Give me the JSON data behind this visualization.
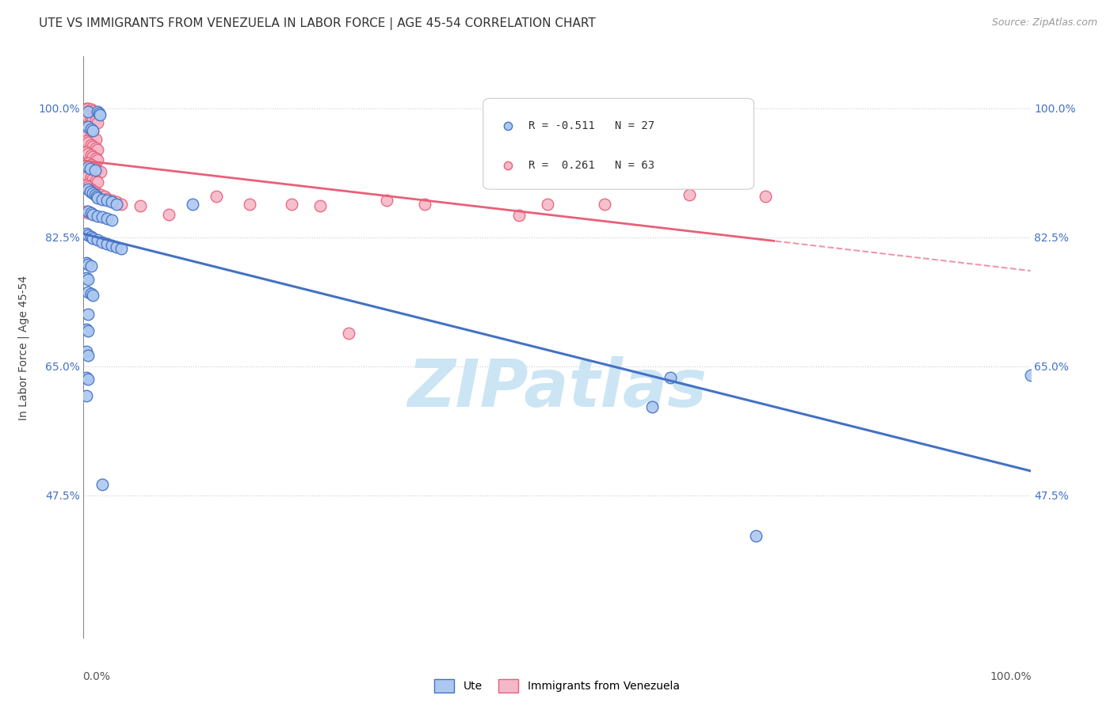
{
  "title": "UTE VS IMMIGRANTS FROM VENEZUELA IN LABOR FORCE | AGE 45-54 CORRELATION CHART",
  "source": "Source: ZipAtlas.com",
  "ylabel": "In Labor Force | Age 45-54",
  "xlim": [
    0.0,
    1.0
  ],
  "ylim": [
    0.28,
    1.07
  ],
  "yticks": [
    0.475,
    0.65,
    0.825,
    1.0
  ],
  "ytick_labels": [
    "47.5%",
    "65.0%",
    "82.5%",
    "100.0%"
  ],
  "ute_line_color": "#4472c4",
  "ute_scatter_face": "#adc8f0",
  "ute_scatter_edge": "#4472c4",
  "venezuela_line_color": "#e8607a",
  "venezuela_scatter_face": "#f5b8c8",
  "venezuela_scatter_edge": "#e8607a",
  "legend_ute_label": "Ute",
  "legend_venezuela_label": "Immigrants from Venezuela",
  "background_color": "#ffffff",
  "grid_color": "#cccccc",
  "title_fontsize": 11,
  "axis_label_fontsize": 10,
  "tick_fontsize": 10,
  "source_fontsize": 9,
  "watermark_color": "#cce5f5",
  "watermark_fontsize": 60,
  "ute_points": [
    [
      0.005,
      0.995
    ],
    [
      0.015,
      0.995
    ],
    [
      0.016,
      0.993
    ],
    [
      0.017,
      0.991
    ],
    [
      0.005,
      0.975
    ],
    [
      0.008,
      0.972
    ],
    [
      0.01,
      0.97
    ],
    [
      0.005,
      0.92
    ],
    [
      0.007,
      0.918
    ],
    [
      0.012,
      0.916
    ],
    [
      0.005,
      0.89
    ],
    [
      0.007,
      0.887
    ],
    [
      0.01,
      0.885
    ],
    [
      0.012,
      0.882
    ],
    [
      0.014,
      0.88
    ],
    [
      0.015,
      0.878
    ],
    [
      0.02,
      0.876
    ],
    [
      0.025,
      0.875
    ],
    [
      0.03,
      0.873
    ],
    [
      0.035,
      0.87
    ],
    [
      0.005,
      0.86
    ],
    [
      0.008,
      0.858
    ],
    [
      0.01,
      0.856
    ],
    [
      0.015,
      0.854
    ],
    [
      0.02,
      0.852
    ],
    [
      0.025,
      0.85
    ],
    [
      0.03,
      0.848
    ],
    [
      0.003,
      0.83
    ],
    [
      0.005,
      0.828
    ],
    [
      0.008,
      0.826
    ],
    [
      0.01,
      0.823
    ],
    [
      0.015,
      0.821
    ],
    [
      0.02,
      0.818
    ],
    [
      0.025,
      0.816
    ],
    [
      0.03,
      0.814
    ],
    [
      0.035,
      0.812
    ],
    [
      0.04,
      0.81
    ],
    [
      0.003,
      0.79
    ],
    [
      0.005,
      0.788
    ],
    [
      0.008,
      0.786
    ],
    [
      0.003,
      0.77
    ],
    [
      0.005,
      0.768
    ],
    [
      0.005,
      0.75
    ],
    [
      0.008,
      0.748
    ],
    [
      0.01,
      0.746
    ],
    [
      0.005,
      0.72
    ],
    [
      0.003,
      0.7
    ],
    [
      0.005,
      0.698
    ],
    [
      0.003,
      0.67
    ],
    [
      0.005,
      0.665
    ],
    [
      0.003,
      0.635
    ],
    [
      0.005,
      0.632
    ],
    [
      0.003,
      0.61
    ],
    [
      0.02,
      0.49
    ],
    [
      0.115,
      0.87
    ],
    [
      0.62,
      0.635
    ],
    [
      1.0,
      0.638
    ],
    [
      0.6,
      0.595
    ],
    [
      0.71,
      0.42
    ]
  ],
  "venezuela_points": [
    [
      0.003,
      1.0
    ],
    [
      0.005,
      1.0
    ],
    [
      0.008,
      0.998
    ],
    [
      0.01,
      0.996
    ],
    [
      0.003,
      0.99
    ],
    [
      0.005,
      0.988
    ],
    [
      0.008,
      0.986
    ],
    [
      0.01,
      0.985
    ],
    [
      0.013,
      0.983
    ],
    [
      0.015,
      0.98
    ],
    [
      0.003,
      0.975
    ],
    [
      0.005,
      0.973
    ],
    [
      0.008,
      0.97
    ],
    [
      0.01,
      0.968
    ],
    [
      0.005,
      0.965
    ],
    [
      0.008,
      0.963
    ],
    [
      0.01,
      0.96
    ],
    [
      0.013,
      0.958
    ],
    [
      0.003,
      0.955
    ],
    [
      0.005,
      0.953
    ],
    [
      0.008,
      0.95
    ],
    [
      0.01,
      0.948
    ],
    [
      0.013,
      0.946
    ],
    [
      0.015,
      0.944
    ],
    [
      0.003,
      0.94
    ],
    [
      0.005,
      0.938
    ],
    [
      0.008,
      0.936
    ],
    [
      0.01,
      0.934
    ],
    [
      0.013,
      0.932
    ],
    [
      0.015,
      0.93
    ],
    [
      0.005,
      0.925
    ],
    [
      0.008,
      0.923
    ],
    [
      0.01,
      0.92
    ],
    [
      0.013,
      0.918
    ],
    [
      0.015,
      0.916
    ],
    [
      0.018,
      0.914
    ],
    [
      0.003,
      0.91
    ],
    [
      0.005,
      0.908
    ],
    [
      0.008,
      0.906
    ],
    [
      0.01,
      0.904
    ],
    [
      0.013,
      0.902
    ],
    [
      0.015,
      0.9
    ],
    [
      0.003,
      0.895
    ],
    [
      0.005,
      0.893
    ],
    [
      0.008,
      0.89
    ],
    [
      0.01,
      0.888
    ],
    [
      0.013,
      0.886
    ],
    [
      0.015,
      0.884
    ],
    [
      0.018,
      0.882
    ],
    [
      0.022,
      0.88
    ],
    [
      0.025,
      0.877
    ],
    [
      0.03,
      0.875
    ],
    [
      0.035,
      0.873
    ],
    [
      0.04,
      0.87
    ],
    [
      0.06,
      0.868
    ],
    [
      0.003,
      0.86
    ],
    [
      0.005,
      0.858
    ],
    [
      0.09,
      0.856
    ],
    [
      0.14,
      0.88
    ],
    [
      0.175,
      0.87
    ],
    [
      0.22,
      0.87
    ],
    [
      0.25,
      0.868
    ],
    [
      0.28,
      0.695
    ],
    [
      0.32,
      0.875
    ],
    [
      0.36,
      0.87
    ],
    [
      0.46,
      0.855
    ],
    [
      0.49,
      0.87
    ],
    [
      0.55,
      0.87
    ],
    [
      0.64,
      0.882
    ],
    [
      0.72,
      0.88
    ]
  ],
  "ute_regression": {
    "slope": -0.425,
    "intercept": 0.878
  },
  "venezuela_regression": {
    "slope": 0.085,
    "intercept": 0.868
  }
}
